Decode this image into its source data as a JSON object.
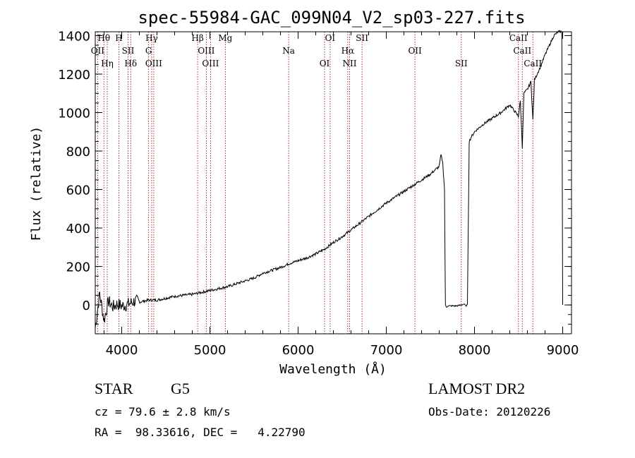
{
  "chart_data": {
    "type": "line",
    "title": "spec-55984-GAC_099N04_V2_sp03-227.fits",
    "xlabel": "Wavelength (Å)",
    "ylabel": "Flux (relative)",
    "xlim": [
      3700,
      9100
    ],
    "ylim": [
      -150,
      1420
    ],
    "x_ticks": [
      4000,
      5000,
      6000,
      7000,
      8000,
      9000
    ],
    "y_ticks": [
      0,
      200,
      400,
      600,
      800,
      1000,
      1200,
      1400
    ],
    "grid": false,
    "series": [
      {
        "x": [
          3700,
          3750,
          3800,
          3850,
          3900,
          3950,
          4000,
          4050,
          4100,
          4150,
          4200,
          4300,
          4400,
          4500,
          4600,
          4700,
          4800,
          4900,
          5000,
          5100,
          5200,
          5300,
          5400,
          5500,
          5600,
          5700,
          5800,
          5900,
          6000,
          6100,
          6200,
          6300,
          6400,
          6500,
          6600,
          6700,
          6800,
          6900,
          7000,
          7100,
          7200,
          7300,
          7400,
          7500,
          7550,
          7600,
          7620,
          7640,
          7660,
          7670,
          7680,
          7700,
          7750,
          7800,
          7850,
          7880,
          7900,
          7920,
          7940,
          7960,
          8000,
          8100,
          8200,
          8300,
          8400,
          8450,
          8498,
          8520,
          8542,
          8560,
          8600,
          8640,
          8662,
          8680,
          8700,
          8750,
          8800,
          8850,
          8900,
          8950,
          8990,
          9000
        ],
        "y": [
          -120,
          60,
          -80,
          20,
          -10,
          5,
          -5,
          0,
          10,
          20,
          15,
          25,
          25,
          35,
          45,
          50,
          55,
          65,
          75,
          85,
          95,
          110,
          125,
          140,
          165,
          180,
          195,
          215,
          230,
          245,
          265,
          290,
          325,
          355,
          390,
          425,
          460,
          495,
          530,
          560,
          590,
          620,
          650,
          680,
          700,
          720,
          780,
          740,
          600,
          0,
          -10,
          -5,
          -5,
          -5,
          0,
          5,
          -5,
          0,
          850,
          870,
          900,
          940,
          970,
          1000,
          1040,
          1010,
          980,
          1060,
          820,
          1100,
          1120,
          1160,
          960,
          1170,
          1190,
          1240,
          1300,
          1350,
          1400,
          1420,
          1420,
          0
        ]
      }
    ],
    "lines": [
      {
        "label": "Hθ",
        "x": 3798
      },
      {
        "label": "OII",
        "x": 3727
      },
      {
        "label": "Hη",
        "x": 3836
      },
      {
        "label": "H",
        "x": 3968
      },
      {
        "label": "SII",
        "x": 4072
      },
      {
        "label": "Hδ",
        "x": 4102
      },
      {
        "label": "Hγ",
        "x": 4340
      },
      {
        "label": "G",
        "x": 4305
      },
      {
        "label": "OIII",
        "x": 4363
      },
      {
        "label": "Hβ",
        "x": 4861
      },
      {
        "label": "OIII",
        "x": 4959
      },
      {
        "label": "OIII",
        "x": 5007
      },
      {
        "label": "Mg",
        "x": 5175
      },
      {
        "label": "Na",
        "x": 5893
      },
      {
        "label": "OI",
        "x": 6300
      },
      {
        "label": "OI",
        "x": 6363
      },
      {
        "label": "Hα",
        "x": 6563
      },
      {
        "label": "NII",
        "x": 6584
      },
      {
        "label": "SII",
        "x": 6725
      },
      {
        "label": "OII",
        "x": 7325
      },
      {
        "label": "SII",
        "x": 7850
      },
      {
        "label": "CaII",
        "x": 8498
      },
      {
        "label": "CaII",
        "x": 8542
      },
      {
        "label": "CaII",
        "x": 8662
      }
    ]
  },
  "info": {
    "class_label": "STAR",
    "subclass_label": "G5",
    "survey_label": "LAMOST DR2",
    "redshift_text": "cz = 79.6 ± 2.8 km/s",
    "obs_date_text": "Obs-Date: 20120226",
    "coords_text": "RA =  98.33616, DEC =   4.22790"
  },
  "colors": {
    "axes": "#000000",
    "spectrum": "#000000",
    "line_markers": "#8b0000",
    "background": "#ffffff"
  }
}
